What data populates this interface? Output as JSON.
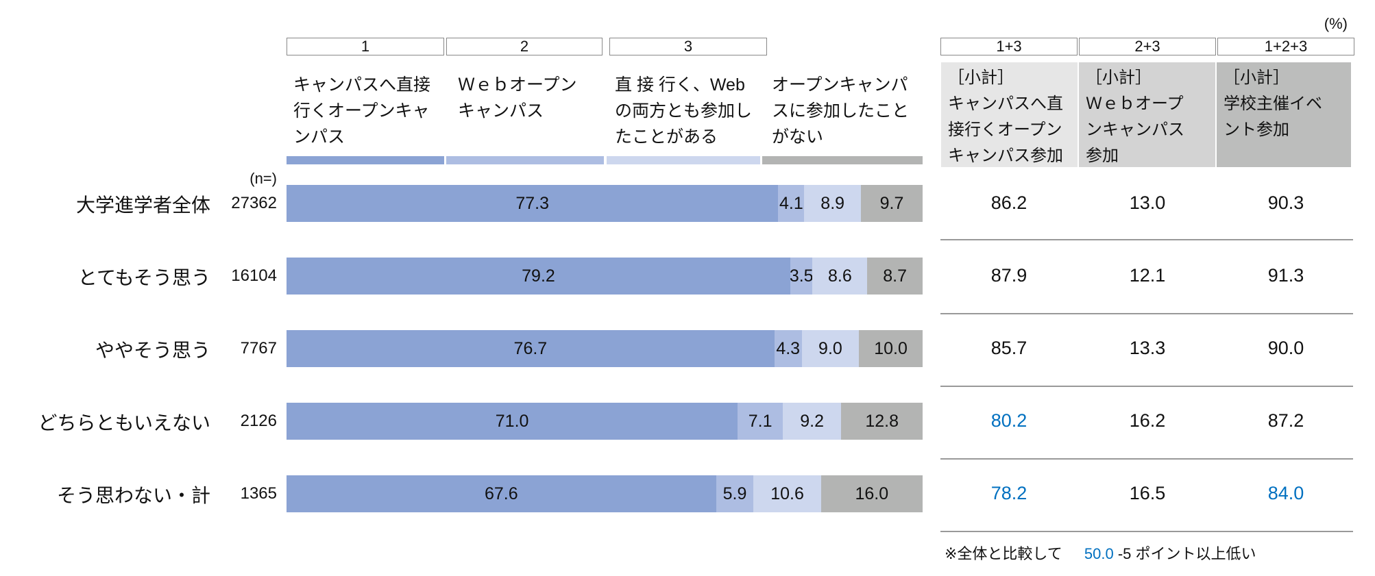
{
  "unit_label": "(%)",
  "n_label": "(n=)",
  "colors": {
    "c1": "#8ba3d4",
    "c2": "#adbde2",
    "c3": "#cdd7ee",
    "c4": "#b3b4b3",
    "highlight": "#0070c0"
  },
  "columns": [
    {
      "num": "1",
      "label": "キャンパスへ直接\n行くオープンキャ\nンパス"
    },
    {
      "num": "2",
      "label": "Ｗｅｂオープン\nキャンパス"
    },
    {
      "num": "3",
      "label": "直 接 行く、Web\nの両方とも参加し\nたことがある"
    },
    {
      "num": "",
      "label": "オープンキャンパ\nスに参加したこと\nがない"
    }
  ],
  "subtotal_columns": [
    {
      "num": "1+3",
      "label": "［小計］\nキャンパスへ直\n接行くオープン\nキャンパス参加"
    },
    {
      "num": "2+3",
      "label": "［小計］\nＷｅｂオープ\nンキャンパス\n参加"
    },
    {
      "num": "1+2+3",
      "label": "［小計］\n学校主催イベ\nント参加"
    }
  ],
  "chart_data": {
    "type": "bar",
    "stacked": true,
    "orientation": "horizontal",
    "categories": [
      "大学進学者全体",
      "とてもそう思う",
      "ややそう思う",
      "どちらともいえない",
      "そう思わない・計"
    ],
    "n": [
      "27362",
      "16104",
      "7767",
      "2126",
      "1365"
    ],
    "series": [
      {
        "name": "1",
        "values": [
          77.3,
          79.2,
          76.7,
          71.0,
          67.6
        ]
      },
      {
        "name": "2",
        "values": [
          4.1,
          3.5,
          4.3,
          7.1,
          5.9
        ]
      },
      {
        "name": "3",
        "values": [
          8.9,
          8.6,
          9.0,
          9.2,
          10.6
        ]
      },
      {
        "name": "オープンキャンパスに参加したことがない",
        "values": [
          9.7,
          8.7,
          10.0,
          12.8,
          16.0
        ]
      }
    ],
    "labels": [
      [
        "77.3",
        "4.1",
        "8.9",
        "9.7"
      ],
      [
        "79.2",
        "3.5",
        "8.6",
        "8.7"
      ],
      [
        "76.7",
        "4.3",
        "9.0",
        "10.0"
      ],
      [
        "71.0",
        "7.1",
        "9.2",
        "12.8"
      ],
      [
        "67.6",
        "5.9",
        "10.6",
        "16.0"
      ]
    ],
    "xlim": [
      0,
      100
    ]
  },
  "subtotals": [
    [
      {
        "v": "86.2",
        "low": false
      },
      {
        "v": "13.0",
        "low": false
      },
      {
        "v": "90.3",
        "low": false
      }
    ],
    [
      {
        "v": "87.9",
        "low": false
      },
      {
        "v": "12.1",
        "low": false
      },
      {
        "v": "91.3",
        "low": false
      }
    ],
    [
      {
        "v": "85.7",
        "low": false
      },
      {
        "v": "13.3",
        "low": false
      },
      {
        "v": "90.0",
        "low": false
      }
    ],
    [
      {
        "v": "80.2",
        "low": true
      },
      {
        "v": "16.2",
        "low": false
      },
      {
        "v": "87.2",
        "low": false
      }
    ],
    [
      {
        "v": "78.2",
        "low": true
      },
      {
        "v": "16.5",
        "low": false
      },
      {
        "v": "84.0",
        "low": true
      }
    ]
  ],
  "footnote": {
    "prefix": "※全体と比較して",
    "sample": "50.0",
    "suffix": "-5 ポイント以上低い"
  }
}
